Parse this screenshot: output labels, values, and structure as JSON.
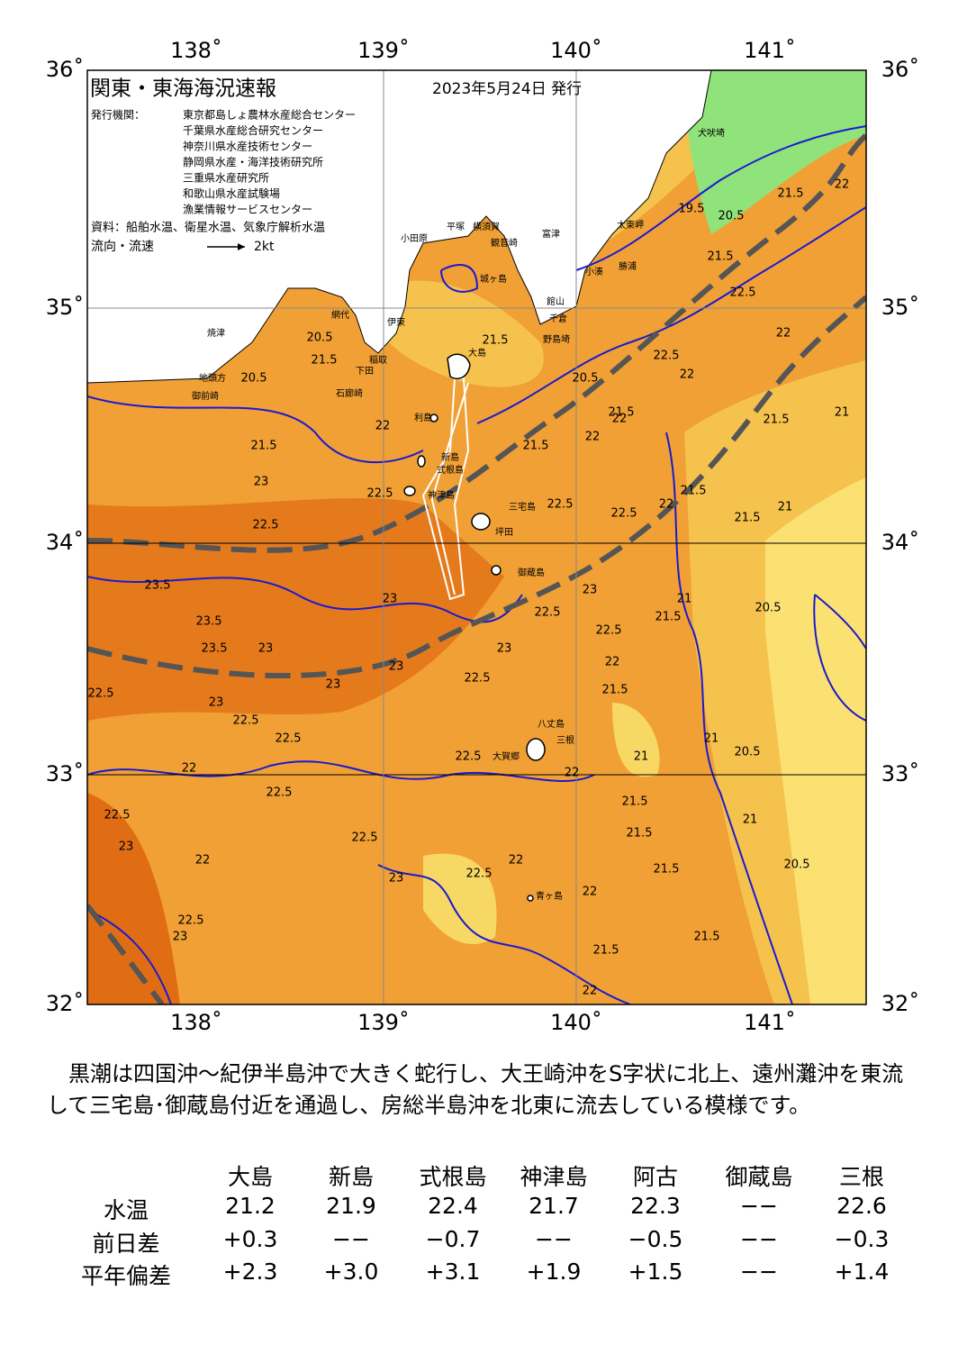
{
  "map": {
    "title": "関東・東海海況速報",
    "date": "2023年5月24日 発行",
    "issuer_label": "発行機関：",
    "issuers": [
      "東京都島しょ農林水産総合センター",
      "千葉県水産総合研究センター",
      "神奈川県水産技術センター",
      "静岡県水産・海洋技術研究所",
      "三重県水産研究所",
      "和歌山県水産試験場",
      "漁業情報サービスセンター"
    ],
    "source": "資料：船舶水温、衛星水温、気象庁解析水温",
    "legend_label": "流向・流速",
    "legend_speed": "2kt",
    "lon_labels": [
      "138˚",
      "139˚",
      "140˚",
      "141˚"
    ],
    "lat_labels": [
      "36˚",
      "35˚",
      "34˚",
      "33˚",
      "32˚"
    ],
    "place_names": [
      "犬吠埼",
      "太東岬",
      "勝浦",
      "小湊",
      "館山",
      "千倉",
      "野島埼",
      "富津",
      "横須賀",
      "観音崎",
      "平塚",
      "小田原",
      "城ヶ島",
      "大島",
      "利島",
      "新島",
      "式根島",
      "神津島",
      "三宅島",
      "坪田",
      "御蔵島",
      "八丈島",
      "三根",
      "大賀郷",
      "青ヶ島",
      "焼津",
      "地頭方",
      "御前崎",
      "石廊崎",
      "下田",
      "稲取",
      "伊東",
      "網代"
    ],
    "contour_labels": [
      20.5,
      21.5,
      20.5,
      21.5,
      22,
      23,
      22.5,
      22.5,
      21.5,
      21.5,
      22,
      22.5,
      22.5,
      22,
      21.5,
      22,
      20.5,
      22,
      22.5,
      21.5,
      22,
      22.5,
      21.5,
      21.5,
      20.5,
      19.5,
      22,
      21.5,
      21,
      21.5,
      20.5,
      21,
      23.5,
      23.5,
      23.5,
      23,
      23,
      23,
      23,
      23,
      22.5,
      22.5,
      22.5,
      22,
      22.5,
      23,
      22.5,
      23,
      22.5,
      22,
      21.5,
      21.5,
      21,
      22.5,
      22,
      21,
      20.5,
      21,
      21.5,
      21.5,
      21.5,
      21,
      20.5,
      22.5,
      23,
      22,
      22.5,
      22.5,
      23,
      22.5,
      22,
      22,
      21.5,
      21.5,
      22,
      22.5,
      23
    ]
  },
  "summary": "黒潮は四国沖～紀伊半島沖で大きく蛇行し、大王崎沖をS字状に北上、遠州灘沖を東流して三宅島･御蔵島付近を通過し、房総半島沖を北東に流去している模様です。",
  "table": {
    "columns": [
      "大島",
      "新島",
      "式根島",
      "神津島",
      "阿古",
      "御蔵島",
      "三根"
    ],
    "rows": [
      {
        "label": "水温",
        "values": [
          "21.2",
          "21.9",
          "22.4",
          "21.7",
          "22.3",
          "−−",
          "22.6"
        ]
      },
      {
        "label": "前日差",
        "values": [
          "+0.3",
          "−−",
          "−0.7",
          "−−",
          "−0.5",
          "−−",
          "−0.3"
        ]
      },
      {
        "label": "平年偏差",
        "values": [
          "+2.3",
          "+3.0",
          "+3.1",
          "+1.9",
          "+1.5",
          "−−",
          "+1.4"
        ]
      }
    ]
  }
}
